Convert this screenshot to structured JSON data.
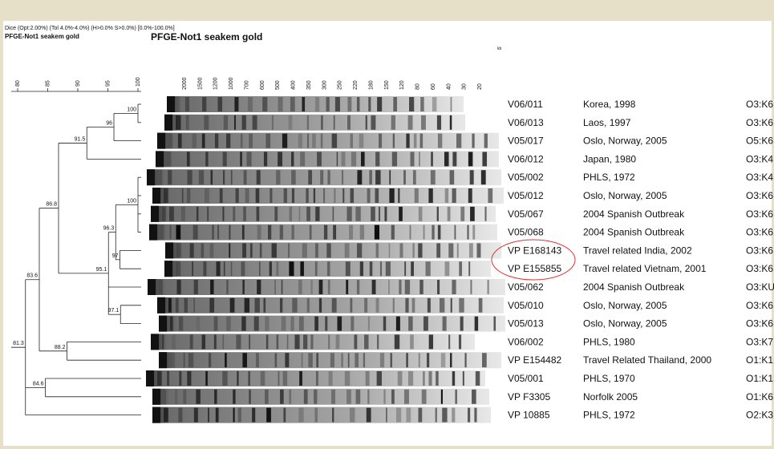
{
  "header": {
    "settings": "Dice (Opt:2.00%) (Tol 4.0%-4.0%) (H>0.0% S>0.0%) [0.0%-100.0%]",
    "subtitle": "PFGE-Not1 seakem gold",
    "title": "PFGE-Not1 seakem gold"
  },
  "scale": {
    "ticks": [
      80,
      85,
      90,
      95,
      100
    ],
    "range": [
      80,
      100
    ]
  },
  "gel": {
    "unit": "kb",
    "markers": [
      "2000",
      "1500",
      "1200",
      "1000",
      "700",
      "600",
      "500",
      "400",
      "350",
      "300",
      "250",
      "220",
      "180",
      "150",
      "120",
      "80",
      "60",
      "40",
      "30",
      "20"
    ]
  },
  "nodes": [
    100,
    96,
    91.5,
    100,
    97,
    96.3,
    95.1,
    97.1,
    86.8,
    83.6,
    88.2,
    84.6,
    81.3
  ],
  "rows": [
    [
      "V06/011",
      "Korea, 1998",
      "O3:K6"
    ],
    [
      "V06/013",
      "Laos, 1997",
      "O3:K6"
    ],
    [
      "V05/017",
      "Oslo, Norway, 2005",
      "O5:K6"
    ],
    [
      "V06/012",
      "Japan, 1980",
      "O3:K4"
    ],
    [
      "V05/002",
      "PHLS, 1972",
      "O3:K4"
    ],
    [
      "V05/012",
      "Oslo, Norway, 2005",
      "O3:K6"
    ],
    [
      "V05/067",
      "2004 Spanish Outbreak",
      "O3:K6"
    ],
    [
      "V05/068",
      "2004 Spanish Outbreak",
      "O3:K6"
    ],
    [
      "VP E168143",
      "Travel related India, 2002",
      "O3:K6"
    ],
    [
      "VP E155855",
      "Travel related Vietnam, 2001",
      "O3:K6"
    ],
    [
      "V05/062",
      "2004 Spanish Outbreak",
      "O3:KU"
    ],
    [
      "V05/010",
      "Oslo, Norway, 2005",
      "O3:K6"
    ],
    [
      "V05/013",
      "Oslo, Norway, 2005",
      "O3:K6"
    ],
    [
      "V06/002",
      "PHLS, 1980",
      "O3:K7"
    ],
    [
      "VP E154482",
      "Travel Related Thailand, 2000",
      "O1:K1"
    ],
    [
      "V05/001",
      "PHLS, 1970",
      "O1:K1"
    ],
    [
      "VP F3305",
      "Norfolk 2005",
      "O1:K6"
    ],
    [
      "VP 10885",
      "PHLS, 1972",
      "O2:K3"
    ]
  ]
}
